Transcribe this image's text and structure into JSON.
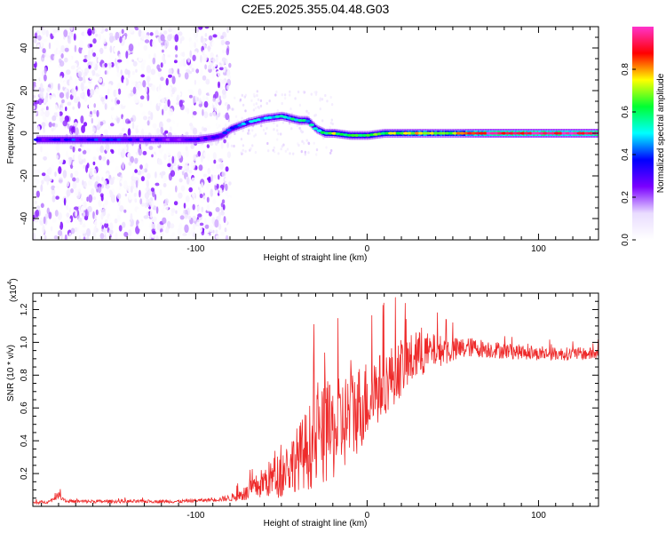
{
  "title": "C2E5.2025.355.04.48.G03",
  "chart_data": [
    {
      "type": "heatmap",
      "xlabel": "Height of straight line (km)",
      "ylabel": "Frequency (Hz)",
      "xlim": [
        -195,
        135
      ],
      "ylim": [
        -50,
        50
      ],
      "xticks": [
        -100,
        0,
        100
      ],
      "yticks": [
        -40,
        -20,
        0,
        20,
        40
      ],
      "colorbar": {
        "label": "Normalized spectral amplitude",
        "range": [
          0,
          1
        ],
        "ticks": [
          "0.0",
          "0.2",
          "0.4",
          "0.6",
          "0.8"
        ],
        "tick_values": [
          0.0,
          0.2,
          0.4,
          0.6,
          0.8
        ],
        "colors": [
          "#ffffff",
          "#e9dcff",
          "#7a00ff",
          "#0000ff",
          "#00ffff",
          "#00ff33",
          "#ffff00",
          "#ff0000",
          "#ff33cc"
        ]
      },
      "noise_region_xlim": [
        -195,
        -80
      ],
      "ridge": {
        "x": [
          -190,
          -170,
          -150,
          -130,
          -110,
          -100,
          -90,
          -85,
          -80,
          -70,
          -60,
          -50,
          -45,
          -40,
          -35,
          -30,
          -25,
          -20,
          -10,
          0,
          10,
          20,
          30,
          40,
          50,
          60,
          70,
          80,
          100,
          120,
          135
        ],
        "y": [
          -3,
          -3,
          -3,
          -3,
          -3,
          -3,
          -2,
          -1,
          2,
          5,
          7,
          8,
          7,
          6,
          6,
          2,
          0,
          0,
          -1,
          -1,
          0,
          0,
          0,
          0,
          0,
          0,
          0,
          0,
          0,
          0,
          0
        ],
        "amplitude": [
          0.3,
          0.35,
          0.35,
          0.3,
          0.25,
          0.3,
          0.3,
          0.35,
          0.35,
          0.45,
          0.5,
          0.5,
          0.55,
          0.55,
          0.5,
          0.55,
          0.6,
          0.7,
          0.6,
          0.6,
          0.65,
          0.7,
          0.75,
          0.7,
          0.7,
          0.85,
          0.95,
          0.95,
          0.95,
          0.95,
          0.95
        ]
      }
    },
    {
      "type": "line",
      "xlabel": "Height of straight line (km)",
      "ylabel": "SNR (10 * v/v)",
      "yscale_label": "(x10",
      "yscale_exp": "4",
      "xlim": [
        -195,
        135
      ],
      "ylim": [
        0,
        1.3
      ],
      "xticks": [
        -100,
        0,
        100
      ],
      "yticks": [
        0.2,
        0.4,
        0.6,
        0.8,
        1.0,
        1.2
      ],
      "ytick_labels": [
        "0.2",
        "0.4",
        "0.6",
        "0.8",
        "1.0",
        "1.2"
      ],
      "color": "#ee2a2a",
      "envelope": {
        "x": [
          -195,
          -185,
          -180,
          -175,
          -170,
          -150,
          -130,
          -110,
          -90,
          -80,
          -70,
          -60,
          -50,
          -40,
          -30,
          -20,
          -10,
          0,
          10,
          20,
          30,
          40,
          50,
          60,
          80,
          100,
          120,
          135
        ],
        "y": [
          0.02,
          0.03,
          0.07,
          0.03,
          0.03,
          0.03,
          0.03,
          0.03,
          0.04,
          0.05,
          0.08,
          0.15,
          0.2,
          0.3,
          0.4,
          0.45,
          0.55,
          0.65,
          0.75,
          0.85,
          0.92,
          0.95,
          0.95,
          0.97,
          0.95,
          0.93,
          0.93,
          0.93
        ],
        "noise": [
          0.01,
          0.01,
          0.02,
          0.01,
          0.01,
          0.01,
          0.01,
          0.01,
          0.01,
          0.02,
          0.05,
          0.1,
          0.15,
          0.2,
          0.3,
          0.3,
          0.3,
          0.25,
          0.2,
          0.18,
          0.15,
          0.1,
          0.08,
          0.06,
          0.05,
          0.04,
          0.04,
          0.04
        ]
      }
    }
  ]
}
